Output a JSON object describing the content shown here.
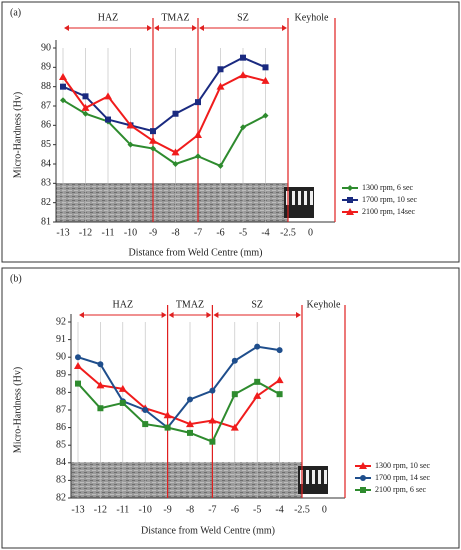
{
  "chart_data": [
    {
      "type": "line",
      "panel_label": "(a)",
      "y_label": "Micro-Hardness (Hv)",
      "x_label": "Distance from Weld Centre (mm)",
      "categories": [
        "-13",
        "-12",
        "-11",
        "-10",
        "-9",
        "-8",
        "-7",
        "-6",
        "-5",
        "-4",
        "-2.5",
        "0"
      ],
      "zones": [
        "HAZ",
        "TMAZ",
        "SZ",
        "Keyhole"
      ],
      "ylim": [
        81,
        90
      ],
      "yticks": [
        81,
        82,
        83,
        84,
        85,
        86,
        87,
        88,
        89,
        90
      ],
      "series": [
        {
          "name": "1300 rpm, 6 sec",
          "color": "#2e8b2e",
          "marker": "diamond",
          "values": [
            87.3,
            86.6,
            86.2,
            85.0,
            84.8,
            84.0,
            84.4,
            83.9,
            85.9,
            86.5,
            null,
            null
          ]
        },
        {
          "name": "1700 rpm, 10 sec",
          "color": "#1a2a80",
          "marker": "square",
          "values": [
            88.0,
            87.5,
            86.3,
            86.0,
            85.7,
            86.6,
            87.2,
            88.9,
            89.5,
            89.0,
            null,
            null
          ]
        },
        {
          "name": "2100 rpm, 14sec",
          "color": "#f01c1c",
          "marker": "triangle",
          "values": [
            88.5,
            86.9,
            87.5,
            86.0,
            85.2,
            84.6,
            85.5,
            88.0,
            88.6,
            88.3,
            null,
            null
          ]
        }
      ]
    },
    {
      "type": "line",
      "panel_label": "(b)",
      "y_label": "Micro-Hardness (Hv)",
      "x_label": "Distance from Weld Centre (mm)",
      "categories": [
        "-13",
        "-12",
        "-11",
        "-10",
        "-9",
        "-8",
        "-7",
        "-6",
        "-5",
        "-4",
        "-2.5",
        "0"
      ],
      "zones": [
        "HAZ",
        "TMAZ",
        "SZ",
        "Keyhole"
      ],
      "ylim": [
        82,
        92
      ],
      "yticks": [
        82,
        83,
        84,
        85,
        86,
        87,
        88,
        89,
        90,
        91,
        92
      ],
      "series": [
        {
          "name": "1300 rpm, 10 sec",
          "color": "#f01c1c",
          "marker": "triangle",
          "values": [
            89.5,
            88.4,
            88.2,
            87.1,
            86.7,
            86.2,
            86.4,
            86.0,
            87.8,
            88.7,
            null,
            null
          ]
        },
        {
          "name": "1700 rpm, 14 sec",
          "color": "#1f4e8c",
          "marker": "circle",
          "values": [
            90.0,
            89.6,
            87.5,
            87.0,
            86.0,
            87.6,
            88.1,
            89.8,
            90.6,
            90.4,
            null,
            null
          ]
        },
        {
          "name": "2100 rpm, 6 sec",
          "color": "#2e8b2e",
          "marker": "square",
          "values": [
            88.5,
            87.1,
            87.4,
            86.2,
            86.0,
            85.7,
            85.2,
            87.9,
            88.6,
            87.9,
            null,
            null
          ]
        }
      ]
    }
  ]
}
